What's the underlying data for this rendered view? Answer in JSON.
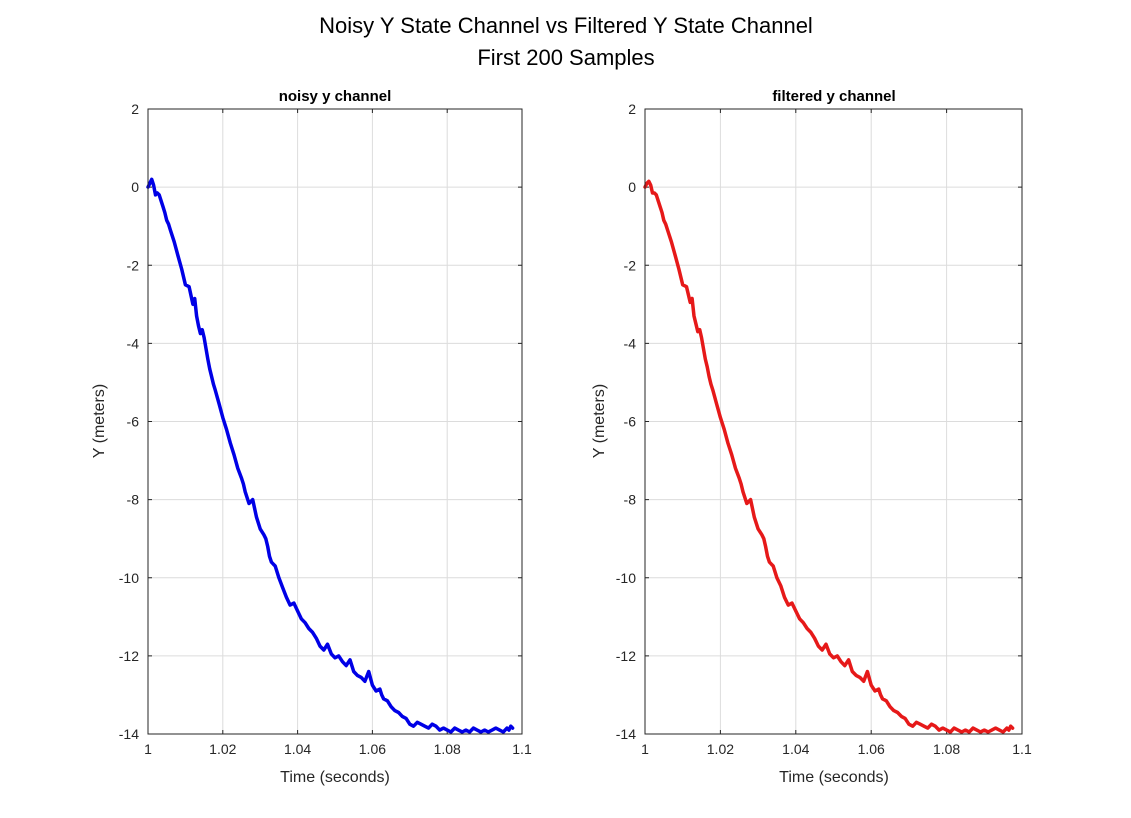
{
  "figure": {
    "title_line1": "Noisy Y State Channel vs Filtered Y State Channel",
    "title_line2": "First 200 Samples"
  },
  "chart_data": [
    {
      "type": "line",
      "title": "noisy y channel",
      "xlabel": "Time (seconds)",
      "ylabel": "Y (meters)",
      "xlim": [
        1,
        1.1
      ],
      "ylim": [
        -14,
        2
      ],
      "xticks": [
        1,
        1.02,
        1.04,
        1.06,
        1.08,
        1.1
      ],
      "yticks": [
        -14,
        -12,
        -10,
        -8,
        -6,
        -4,
        -2,
        0,
        2
      ],
      "xtick_labels": [
        "1",
        "1.02",
        "1.04",
        "1.06",
        "1.08",
        "1.1"
      ],
      "ytick_labels": [
        "-14",
        "-12",
        "-10",
        "-8",
        "-6",
        "-4",
        "-2",
        "0",
        "2"
      ],
      "grid": true,
      "series": [
        {
          "color": "#0000e6",
          "x": [
            1.0,
            1.0005,
            1.001,
            1.0015,
            1.002,
            1.0025,
            1.003,
            1.0035,
            1.004,
            1.0045,
            1.005,
            1.0055,
            1.006,
            1.007,
            1.008,
            1.009,
            1.01,
            1.011,
            1.012,
            1.0125,
            1.013,
            1.0135,
            1.014,
            1.0145,
            1.015,
            1.016,
            1.0165,
            1.017,
            1.0175,
            1.018,
            1.019,
            1.02,
            1.021,
            1.022,
            1.023,
            1.024,
            1.025,
            1.0255,
            1.026,
            1.027,
            1.028,
            1.029,
            1.03,
            1.031,
            1.0315,
            1.032,
            1.0325,
            1.033,
            1.0335,
            1.034,
            1.035,
            1.036,
            1.037,
            1.038,
            1.039,
            1.04,
            1.041,
            1.042,
            1.043,
            1.044,
            1.045,
            1.046,
            1.047,
            1.048,
            1.049,
            1.05,
            1.051,
            1.052,
            1.053,
            1.054,
            1.055,
            1.056,
            1.057,
            1.058,
            1.059,
            1.06,
            1.061,
            1.062,
            1.0625,
            1.063,
            1.064,
            1.065,
            1.066,
            1.067,
            1.068,
            1.069,
            1.07,
            1.071,
            1.072,
            1.073,
            1.074,
            1.075,
            1.076,
            1.077,
            1.078,
            1.079,
            1.08,
            1.081,
            1.082,
            1.083,
            1.084,
            1.085,
            1.086,
            1.087,
            1.088,
            1.089,
            1.09,
            1.091,
            1.092,
            1.093,
            1.094,
            1.095,
            1.096,
            1.0965,
            1.097,
            1.0975
          ],
          "y": [
            0.0,
            0.1,
            0.2,
            0.05,
            -0.2,
            -0.15,
            -0.2,
            -0.35,
            -0.5,
            -0.65,
            -0.85,
            -0.95,
            -1.1,
            -1.4,
            -1.75,
            -2.1,
            -2.5,
            -2.55,
            -3.0,
            -2.85,
            -3.3,
            -3.55,
            -3.75,
            -3.65,
            -3.85,
            -4.4,
            -4.65,
            -4.85,
            -5.05,
            -5.2,
            -5.55,
            -5.9,
            -6.2,
            -6.55,
            -6.85,
            -7.2,
            -7.45,
            -7.6,
            -7.8,
            -8.1,
            -8.0,
            -8.45,
            -8.75,
            -8.9,
            -9.0,
            -9.2,
            -9.45,
            -9.6,
            -9.65,
            -9.7,
            -10.0,
            -10.25,
            -10.5,
            -10.7,
            -10.65,
            -10.85,
            -11.05,
            -11.15,
            -11.3,
            -11.4,
            -11.55,
            -11.75,
            -11.85,
            -11.7,
            -11.95,
            -12.05,
            -12.0,
            -12.15,
            -12.25,
            -12.1,
            -12.4,
            -12.5,
            -12.55,
            -12.65,
            -12.4,
            -12.75,
            -12.9,
            -12.85,
            -13.0,
            -13.1,
            -13.15,
            -13.3,
            -13.4,
            -13.45,
            -13.55,
            -13.6,
            -13.75,
            -13.8,
            -13.7,
            -13.75,
            -13.8,
            -13.85,
            -13.75,
            -13.8,
            -13.9,
            -13.85,
            -13.9,
            -13.95,
            -13.85,
            -13.9,
            -13.95,
            -13.9,
            -13.95,
            -13.85,
            -13.9,
            -13.95,
            -13.9,
            -13.95,
            -13.9,
            -13.85,
            -13.9,
            -13.95,
            -13.85,
            -13.9,
            -13.8,
            -13.85
          ],
          "note": "shape approximated"
        }
      ]
    },
    {
      "type": "line",
      "title": "filtered y channel",
      "xlabel": "Time (seconds)",
      "ylabel": "Y (meters)",
      "xlim": [
        1,
        1.1
      ],
      "ylim": [
        -14,
        2
      ],
      "xticks": [
        1,
        1.02,
        1.04,
        1.06,
        1.08,
        1.1
      ],
      "yticks": [
        -14,
        -12,
        -10,
        -8,
        -6,
        -4,
        -2,
        0,
        2
      ],
      "xtick_labels": [
        "1",
        "1.02",
        "1.04",
        "1.06",
        "1.08",
        "1.1"
      ],
      "ytick_labels": [
        "-14",
        "-12",
        "-10",
        "-8",
        "-6",
        "-4",
        "-2",
        "0",
        "2"
      ],
      "grid": true,
      "series": [
        {
          "color": "#e61919",
          "x": [
            1.0,
            1.0005,
            1.001,
            1.0015,
            1.002,
            1.0025,
            1.003,
            1.0035,
            1.004,
            1.0045,
            1.005,
            1.0055,
            1.006,
            1.007,
            1.008,
            1.009,
            1.01,
            1.011,
            1.012,
            1.0125,
            1.013,
            1.0135,
            1.014,
            1.0145,
            1.015,
            1.016,
            1.0165,
            1.017,
            1.0175,
            1.018,
            1.019,
            1.02,
            1.021,
            1.022,
            1.023,
            1.024,
            1.025,
            1.0255,
            1.026,
            1.027,
            1.028,
            1.029,
            1.03,
            1.031,
            1.0315,
            1.032,
            1.0325,
            1.033,
            1.0335,
            1.034,
            1.035,
            1.036,
            1.037,
            1.038,
            1.039,
            1.04,
            1.041,
            1.042,
            1.043,
            1.044,
            1.045,
            1.046,
            1.047,
            1.048,
            1.049,
            1.05,
            1.051,
            1.052,
            1.053,
            1.054,
            1.055,
            1.056,
            1.057,
            1.058,
            1.059,
            1.06,
            1.061,
            1.062,
            1.0625,
            1.063,
            1.064,
            1.065,
            1.066,
            1.067,
            1.068,
            1.069,
            1.07,
            1.071,
            1.072,
            1.073,
            1.074,
            1.075,
            1.076,
            1.077,
            1.078,
            1.079,
            1.08,
            1.081,
            1.082,
            1.083,
            1.084,
            1.085,
            1.086,
            1.087,
            1.088,
            1.089,
            1.09,
            1.091,
            1.092,
            1.093,
            1.094,
            1.095,
            1.096,
            1.0965,
            1.097,
            1.0975
          ],
          "y": [
            0.0,
            0.1,
            0.15,
            0.05,
            -0.15,
            -0.15,
            -0.2,
            -0.35,
            -0.5,
            -0.65,
            -0.85,
            -0.95,
            -1.1,
            -1.4,
            -1.75,
            -2.1,
            -2.5,
            -2.55,
            -2.95,
            -2.85,
            -3.3,
            -3.5,
            -3.7,
            -3.65,
            -3.85,
            -4.4,
            -4.6,
            -4.85,
            -5.05,
            -5.2,
            -5.55,
            -5.9,
            -6.2,
            -6.55,
            -6.85,
            -7.2,
            -7.45,
            -7.6,
            -7.8,
            -8.1,
            -8.0,
            -8.45,
            -8.75,
            -8.9,
            -9.0,
            -9.2,
            -9.45,
            -9.6,
            -9.65,
            -9.7,
            -10.0,
            -10.2,
            -10.5,
            -10.7,
            -10.65,
            -10.85,
            -11.05,
            -11.15,
            -11.3,
            -11.4,
            -11.55,
            -11.75,
            -11.85,
            -11.7,
            -11.95,
            -12.05,
            -12.0,
            -12.15,
            -12.25,
            -12.1,
            -12.4,
            -12.5,
            -12.55,
            -12.65,
            -12.4,
            -12.75,
            -12.9,
            -12.85,
            -13.0,
            -13.1,
            -13.15,
            -13.3,
            -13.4,
            -13.45,
            -13.55,
            -13.6,
            -13.75,
            -13.8,
            -13.7,
            -13.75,
            -13.8,
            -13.85,
            -13.75,
            -13.8,
            -13.9,
            -13.85,
            -13.9,
            -13.95,
            -13.85,
            -13.9,
            -13.95,
            -13.9,
            -13.95,
            -13.85,
            -13.9,
            -13.95,
            -13.9,
            -13.95,
            -13.9,
            -13.85,
            -13.9,
            -13.95,
            -13.85,
            -13.9,
            -13.8,
            -13.85
          ],
          "note": "shape approximated"
        }
      ]
    }
  ]
}
